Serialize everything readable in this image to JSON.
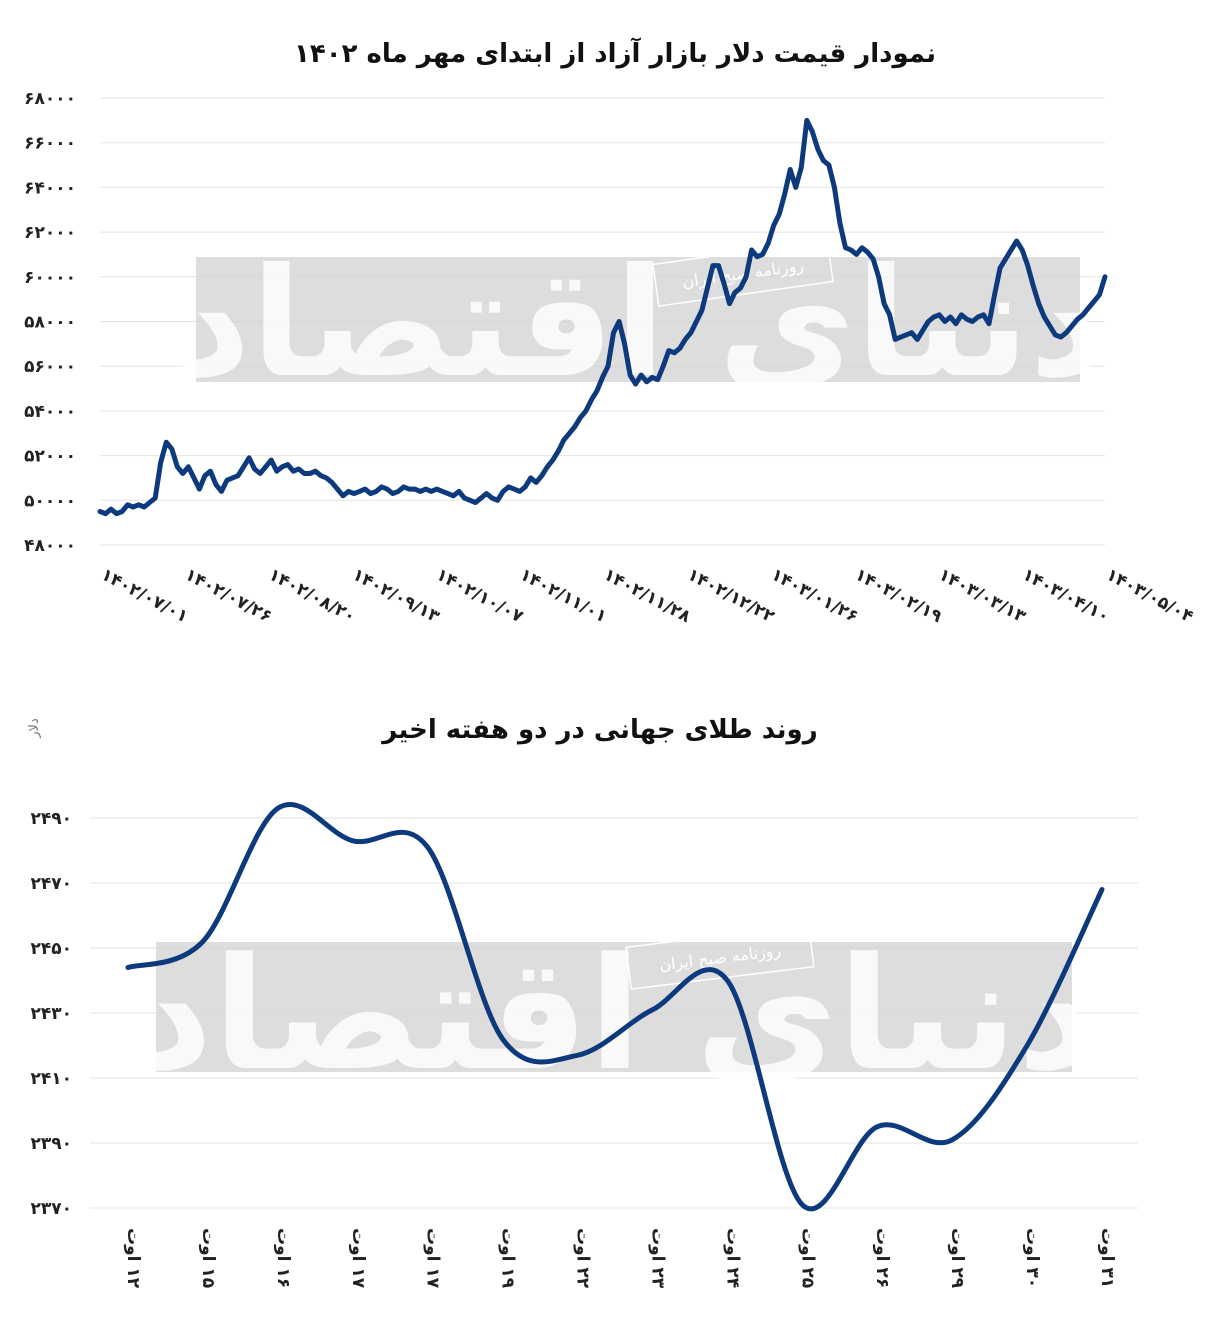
{
  "watermark": {
    "main": "دنیای اقتصاد",
    "sub": "روزنامه صبح ایران"
  },
  "chart_data": [
    {
      "type": "line",
      "title": "نمودار قیمت دلار بازار آزاد از ابتدای مهر ماه ۱۴۰۲",
      "xlabel": "",
      "ylabel": "",
      "ylim": [
        48000,
        68000
      ],
      "yticks": [
        48000,
        50000,
        52000,
        54000,
        56000,
        58000,
        60000,
        62000,
        64000,
        66000,
        68000
      ],
      "ytick_labels": [
        "۴۸۰۰۰",
        "۵۰۰۰۰",
        "۵۲۰۰۰",
        "۵۴۰۰۰",
        "۵۶۰۰۰",
        "۵۸۰۰۰",
        "۶۰۰۰۰",
        "۶۲۰۰۰",
        "۶۴۰۰۰",
        "۶۶۰۰۰",
        "۶۸۰۰۰"
      ],
      "x_tick_labels": [
        "۱۴۰۲/۰۷/۰۱",
        "۱۴۰۲/۰۷/۲۶",
        "۱۴۰۲/۰۸/۲۰",
        "۱۴۰۲/۰۹/۱۳",
        "۱۴۰۲/۱۰/۰۷",
        "۱۴۰۲/۱۱/۰۱",
        "۱۴۰۲/۱۱/۲۸",
        "۱۴۰۲/۱۲/۲۲",
        "۱۴۰۳/۰۱/۲۶",
        "۱۴۰۳/۰۲/۱۹",
        "۱۴۰۳/۰۳/۱۳",
        "۱۴۰۳/۰۴/۱۰",
        "۱۴۰۳/۰۵/۰۴"
      ],
      "grid": true,
      "series": [
        {
          "color": "#0d3a7c",
          "values": [
            49500,
            49400,
            49600,
            49400,
            49500,
            49800,
            49700,
            49800,
            49700,
            49900,
            50100,
            51700,
            52600,
            52300,
            51500,
            51200,
            51500,
            51000,
            50500,
            51100,
            51300,
            50700,
            50400,
            50900,
            51000,
            51100,
            51500,
            51900,
            51400,
            51200,
            51500,
            51800,
            51300,
            51500,
            51600,
            51300,
            51400,
            51200,
            51200,
            51300,
            51100,
            51000,
            50800,
            50500,
            50200,
            50400,
            50300,
            50400,
            50500,
            50300,
            50400,
            50600,
            50500,
            50300,
            50400,
            50600,
            50500,
            50500,
            50400,
            50500,
            50400,
            50500,
            50400,
            50300,
            50200,
            50400,
            50100,
            50000,
            49900,
            50100,
            50300,
            50100,
            50000,
            50400,
            50600,
            50500,
            50400,
            50600,
            51000,
            50800,
            51100,
            51500,
            51800,
            52200,
            52700,
            53000,
            53300,
            53700,
            54000,
            54500,
            54900,
            55500,
            56000,
            57500,
            58000,
            57000,
            55600,
            55200,
            55600,
            55300,
            55500,
            55400,
            56000,
            56700,
            56600,
            56800,
            57200,
            57500,
            58000,
            58500,
            59500,
            60500,
            60500,
            59700,
            58800,
            59300,
            59500,
            60000,
            61200,
            60900,
            61000,
            61500,
            62300,
            62800,
            63700,
            64800,
            64000,
            64900,
            67000,
            66500,
            65700,
            65200,
            65000,
            64000,
            62400,
            61300,
            61200,
            61000,
            61300,
            61100,
            60800,
            60000,
            58800,
            58300,
            57200,
            57300,
            57400,
            57500,
            57200,
            57600,
            58000,
            58200,
            58300,
            58000,
            58200,
            57900,
            58300,
            58100,
            58000,
            58200,
            58300,
            57900,
            59200,
            60400,
            60800,
            61200,
            61600,
            61200,
            60500,
            59600,
            58800,
            58200,
            57800,
            57400,
            57300,
            57500,
            57800,
            58100,
            58300,
            58600,
            58900,
            59200,
            60000
          ]
        }
      ]
    },
    {
      "type": "line",
      "title": "روند طلای جهانی در دو هفته اخیر",
      "xlabel": "",
      "ylabel": "دلار",
      "ylim": [
        2370,
        2490
      ],
      "yticks": [
        2370,
        2390,
        2410,
        2430,
        2450,
        2470,
        2490
      ],
      "ytick_labels": [
        "۲۳۷۰",
        "۲۳۹۰",
        "۲۴۱۰",
        "۲۴۳۰",
        "۲۴۵۰",
        "۲۴۷۰",
        "۲۴۹۰"
      ],
      "categories": [
        "۱۲ اوت",
        "۱۵ اوت",
        "۱۶ اوت",
        "۱۷ اوت",
        "۱۷ اوت",
        "۱۹ اوت",
        "۲۲ اوت",
        "۲۳ اوت",
        "۲۴ اوت",
        "۲۵ اوت",
        "۲۶ اوت",
        "۲۹ اوت",
        "۳۰ اوت",
        "۳۱ اوت"
      ],
      "grid": true,
      "series": [
        {
          "color": "#0d3a7c",
          "values": [
            2444,
            2452,
            2493,
            2483,
            2481,
            2422,
            2417,
            2431,
            2440,
            2371,
            2395,
            2391,
            2420,
            2468
          ]
        }
      ]
    }
  ]
}
